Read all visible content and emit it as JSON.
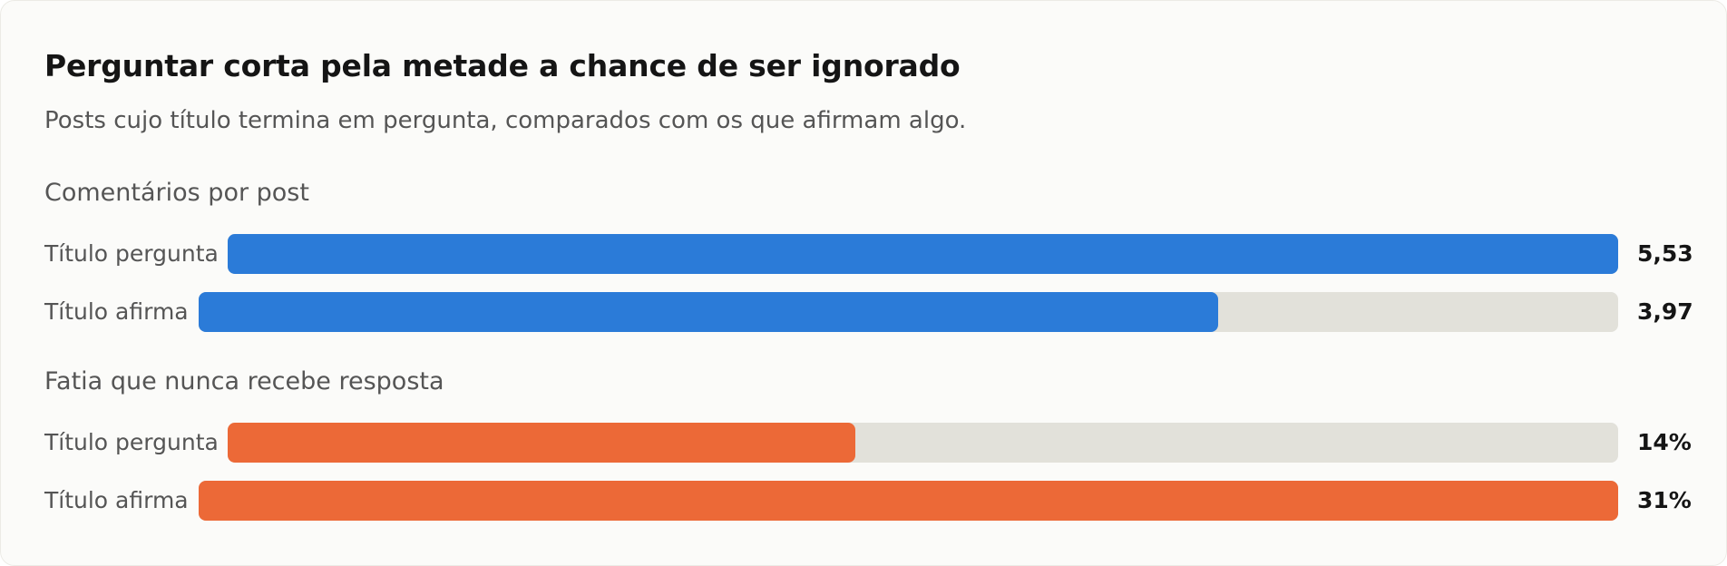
{
  "title": "Perguntar corta pela metade a chance de ser ignorado",
  "subtitle": "Posts cujo título termina em pergunta, comparados com os que afirmam algo.",
  "colors": {
    "blue": "#2b7bd8",
    "orange": "#ec6937",
    "track": "#e2e1da"
  },
  "chart_data": [
    {
      "type": "bar",
      "title": "Comentários por post",
      "categories": [
        "Título pergunta",
        "Título afirma"
      ],
      "values": [
        5.53,
        3.97
      ],
      "value_labels": [
        "5,53",
        "3,97"
      ],
      "max": 5.53,
      "color": "#2b7bd8"
    },
    {
      "type": "bar",
      "title": "Fatia que nunca recebe resposta",
      "categories": [
        "Título pergunta",
        "Título afirma"
      ],
      "values": [
        14,
        31
      ],
      "value_labels": [
        "14%",
        "31%"
      ],
      "max": 31,
      "color": "#ec6937"
    }
  ]
}
